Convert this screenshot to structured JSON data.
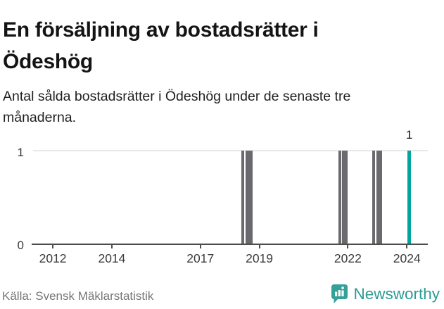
{
  "title": "En försäljning av bostadsrätter i Ödeshög",
  "subtitle": "Antal sålda bostadsrätter i Ödeshög under de senaste tre månaderna.",
  "footer": {
    "source": "Källa: Svensk Mäklarstatistik",
    "brand_name": "Newsworthy",
    "brand_icon": "newsworthy-speech-bubble-bars-icon"
  },
  "colors": {
    "bar_gray": "#69696e",
    "bar_highlight": "#00a49e",
    "gridline": "#e8e8e8",
    "axis": "#4d4d4d",
    "brand_teal": "#35a098",
    "brand_text_teal": "#2b9c94"
  },
  "chart_data": {
    "type": "bar",
    "title": "En försäljning av bostadsrätter i Ödeshög",
    "subtitle": "Antal sålda bostadsrätter i Ödeshög under de senaste tre månaderna.",
    "xlabel": "",
    "ylabel": "",
    "x_unit": "year",
    "y_unit": "antal sålda bostadsrätter per månad",
    "xlim": [
      2011.33,
      2024.71
    ],
    "ylim": [
      0,
      1
    ],
    "x_ticks": [
      2012,
      2014,
      2017,
      2019,
      2022,
      2024
    ],
    "y_ticks": [
      0,
      1
    ],
    "grid": "y-gridline at 1 only",
    "legend": "none",
    "annotation": {
      "text": "1",
      "x": 2024.08,
      "y": 1
    },
    "bars": [
      {
        "x_from": 2018.4,
        "x_to": 2018.49,
        "value": 1,
        "highlight": false
      },
      {
        "x_from": 2018.54,
        "x_to": 2018.78,
        "value": 1,
        "highlight": false
      },
      {
        "x_from": 2021.68,
        "x_to": 2021.77,
        "value": 1,
        "highlight": false
      },
      {
        "x_from": 2021.81,
        "x_to": 2022.0,
        "value": 1,
        "highlight": false
      },
      {
        "x_from": 2022.82,
        "x_to": 2022.91,
        "value": 1,
        "highlight": false
      },
      {
        "x_from": 2022.96,
        "x_to": 2023.15,
        "value": 1,
        "highlight": false
      },
      {
        "x_from": 2024.03,
        "x_to": 2024.14,
        "value": 1,
        "highlight": true
      }
    ]
  }
}
